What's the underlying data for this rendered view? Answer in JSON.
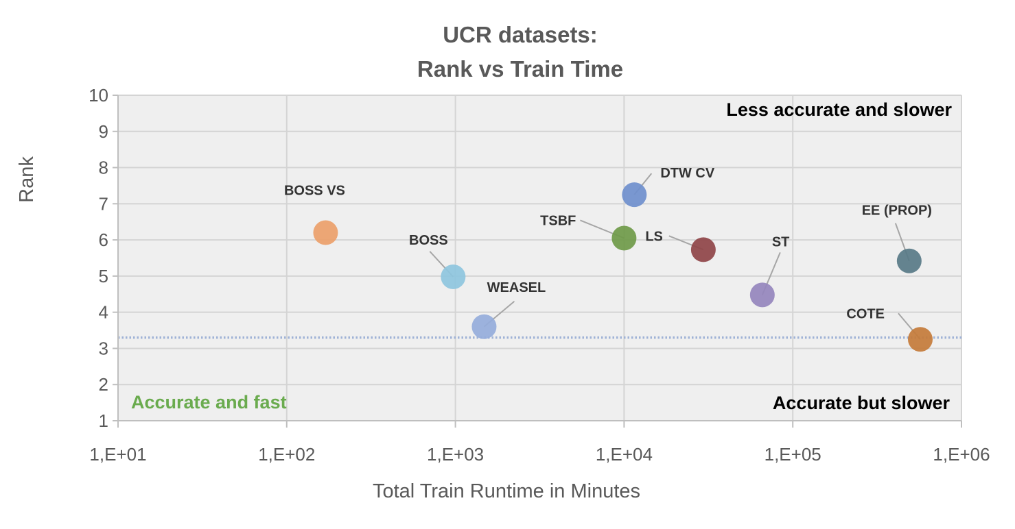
{
  "chart_data": {
    "type": "scatter",
    "title": [
      "UCR datasets:",
      "Rank vs Train Time"
    ],
    "xlabel": "Total Train Runtime in Minutes",
    "ylabel": "Rank",
    "xscale": "log",
    "xlim": [
      10,
      1000000
    ],
    "ylim": [
      1,
      10
    ],
    "xtick_labels": [
      "1,E+01",
      "1,E+02",
      "1,E+03",
      "1,E+04",
      "1,E+05",
      "1,E+06"
    ],
    "ytick_labels": [
      "1",
      "2",
      "3",
      "4",
      "5",
      "6",
      "7",
      "8",
      "9",
      "10"
    ],
    "grid": true,
    "reference_line": {
      "y": 3.3,
      "style": "dotted",
      "color": "#9fb2d6"
    },
    "points": [
      {
        "label": "BOSS VS",
        "x": 170,
        "y": 6.2,
        "color": "#eba06a",
        "label_color": "#000000"
      },
      {
        "label": "BOSS",
        "x": 970,
        "y": 4.98,
        "color": "#8ec5de",
        "label_color": "#333333"
      },
      {
        "label": "WEASEL",
        "x": 1480,
        "y": 3.6,
        "color": "#95acdb",
        "label_color": "#b94646"
      },
      {
        "label": "TSBF",
        "x": 10000,
        "y": 6.05,
        "color": "#6f9a49",
        "label_color": "#333333"
      },
      {
        "label": "DTW CV",
        "x": 11500,
        "y": 7.25,
        "color": "#6f8fcd",
        "label_color": "#333333"
      },
      {
        "label": "LS",
        "x": 29500,
        "y": 5.73,
        "color": "#8f4448",
        "label_color": "#333333"
      },
      {
        "label": "ST",
        "x": 66000,
        "y": 4.48,
        "color": "#9585bd",
        "label_color": "#333333"
      },
      {
        "label": "EE (PROP)",
        "x": 490000,
        "y": 5.42,
        "color": "#587987",
        "label_color": "#333333"
      },
      {
        "label": "COTE",
        "x": 570000,
        "y": 3.25,
        "color": "#c47b3a",
        "label_color": "#333333"
      }
    ],
    "annotations": [
      {
        "text": "Less accurate and slower",
        "color": "#000000"
      },
      {
        "text": "Accurate and fast",
        "color": "#6aab4e"
      },
      {
        "text": "Accurate but slower",
        "color": "#000000"
      }
    ]
  }
}
